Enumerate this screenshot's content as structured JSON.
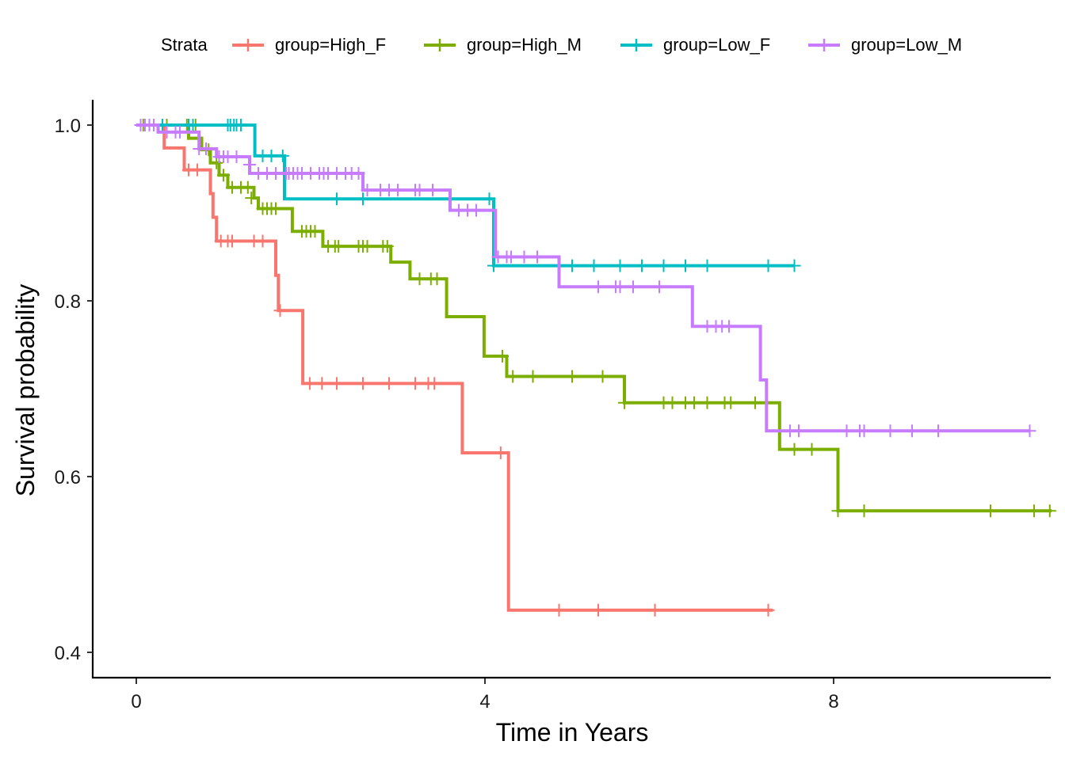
{
  "chart_data": {
    "type": "line",
    "subtype": "kaplan-meier",
    "xlabel": "Time in Years",
    "ylabel": "Survival probability",
    "xlim": [
      -0.5,
      10.5
    ],
    "ylim": [
      0.37,
      1.03
    ],
    "xticks": [
      0,
      4,
      8
    ],
    "yticks": [
      0.4,
      0.6,
      0.8,
      1.0
    ],
    "ytick_labels": [
      "0.4",
      "0.6",
      "0.8",
      "1.0"
    ],
    "grid": false,
    "legend": {
      "title": "Strata",
      "position": "top"
    },
    "series": [
      {
        "name": "group=High_F",
        "color": "#F8766D",
        "steps": [
          [
            0,
            1.0
          ],
          [
            0.32,
            0.974
          ],
          [
            0.55,
            0.949
          ],
          [
            0.85,
            0.922
          ],
          [
            0.88,
            0.895
          ],
          [
            0.92,
            0.868
          ],
          [
            1.6,
            0.829
          ],
          [
            1.63,
            0.789
          ],
          [
            1.91,
            0.706
          ],
          [
            3.74,
            0.627
          ],
          [
            4.27,
            0.448
          ],
          [
            7.3,
            0.448
          ]
        ],
        "censors": [
          [
            0.6,
            0.949
          ],
          [
            0.7,
            0.949
          ],
          [
            0.97,
            0.868
          ],
          [
            1.05,
            0.868
          ],
          [
            1.1,
            0.868
          ],
          [
            1.35,
            0.868
          ],
          [
            1.45,
            0.868
          ],
          [
            1.65,
            0.789
          ],
          [
            1.99,
            0.706
          ],
          [
            2.13,
            0.706
          ],
          [
            2.3,
            0.706
          ],
          [
            2.6,
            0.706
          ],
          [
            2.9,
            0.706
          ],
          [
            3.2,
            0.706
          ],
          [
            3.35,
            0.706
          ],
          [
            3.42,
            0.706
          ],
          [
            4.18,
            0.627
          ],
          [
            4.85,
            0.448
          ],
          [
            5.3,
            0.448
          ],
          [
            5.95,
            0.448
          ],
          [
            7.25,
            0.448
          ]
        ]
      },
      {
        "name": "group=High_M",
        "color": "#7CAE00",
        "steps": [
          [
            0,
            1.0
          ],
          [
            0.6,
            0.985
          ],
          [
            0.75,
            0.972
          ],
          [
            0.85,
            0.957
          ],
          [
            0.95,
            0.943
          ],
          [
            1.05,
            0.929
          ],
          [
            1.35,
            0.917
          ],
          [
            1.4,
            0.905
          ],
          [
            1.79,
            0.879
          ],
          [
            2.14,
            0.862
          ],
          [
            2.92,
            0.844
          ],
          [
            3.14,
            0.825
          ],
          [
            3.56,
            0.782
          ],
          [
            3.99,
            0.737
          ],
          [
            4.25,
            0.714
          ],
          [
            5.6,
            0.684
          ],
          [
            7.38,
            0.631
          ],
          [
            8.05,
            0.561
          ],
          [
            10.5,
            0.561
          ]
        ],
        "censors": [
          [
            0.08,
            1.0
          ],
          [
            0.2,
            1.0
          ],
          [
            0.35,
            1.0
          ],
          [
            0.58,
            1.0
          ],
          [
            0.68,
            1.0
          ],
          [
            0.83,
            0.972
          ],
          [
            0.92,
            0.957
          ],
          [
            1.0,
            0.943
          ],
          [
            1.1,
            0.929
          ],
          [
            1.2,
            0.929
          ],
          [
            1.28,
            0.929
          ],
          [
            1.32,
            0.917
          ],
          [
            1.45,
            0.905
          ],
          [
            1.5,
            0.905
          ],
          [
            1.55,
            0.905
          ],
          [
            1.6,
            0.905
          ],
          [
            1.9,
            0.879
          ],
          [
            1.95,
            0.879
          ],
          [
            2.0,
            0.879
          ],
          [
            2.05,
            0.879
          ],
          [
            2.2,
            0.862
          ],
          [
            2.28,
            0.862
          ],
          [
            2.32,
            0.862
          ],
          [
            2.55,
            0.862
          ],
          [
            2.6,
            0.862
          ],
          [
            2.65,
            0.862
          ],
          [
            2.83,
            0.862
          ],
          [
            2.88,
            0.862
          ],
          [
            3.25,
            0.825
          ],
          [
            3.38,
            0.825
          ],
          [
            3.45,
            0.825
          ],
          [
            4.2,
            0.737
          ],
          [
            4.32,
            0.714
          ],
          [
            4.55,
            0.714
          ],
          [
            5.0,
            0.714
          ],
          [
            5.35,
            0.714
          ],
          [
            5.6,
            0.684
          ],
          [
            6.05,
            0.684
          ],
          [
            6.15,
            0.684
          ],
          [
            6.3,
            0.684
          ],
          [
            6.4,
            0.684
          ],
          [
            6.55,
            0.684
          ],
          [
            6.75,
            0.684
          ],
          [
            6.82,
            0.684
          ],
          [
            7.1,
            0.684
          ],
          [
            7.55,
            0.631
          ],
          [
            7.75,
            0.631
          ],
          [
            8.05,
            0.561
          ],
          [
            8.35,
            0.561
          ],
          [
            9.8,
            0.561
          ],
          [
            10.3,
            0.561
          ],
          [
            10.48,
            0.561
          ]
        ]
      },
      {
        "name": "group=Low_F",
        "color": "#00BFC4",
        "steps": [
          [
            0,
            1.0
          ],
          [
            1.36,
            0.965
          ],
          [
            1.7,
            0.916
          ],
          [
            4.1,
            0.84
          ],
          [
            7.55,
            0.84
          ]
        ],
        "censors": [
          [
            0.05,
            1.0
          ],
          [
            0.15,
            1.0
          ],
          [
            0.3,
            1.0
          ],
          [
            0.6,
            1.0
          ],
          [
            0.65,
            1.0
          ],
          [
            1.05,
            1.0
          ],
          [
            1.08,
            1.0
          ],
          [
            1.12,
            1.0
          ],
          [
            1.15,
            1.0
          ],
          [
            1.2,
            1.0
          ],
          [
            1.45,
            0.965
          ],
          [
            1.55,
            0.965
          ],
          [
            1.68,
            0.965
          ],
          [
            2.3,
            0.916
          ],
          [
            2.6,
            0.916
          ],
          [
            4.05,
            0.916
          ],
          [
            4.1,
            0.84
          ],
          [
            5.0,
            0.84
          ],
          [
            5.25,
            0.84
          ],
          [
            5.55,
            0.84
          ],
          [
            5.8,
            0.84
          ],
          [
            6.05,
            0.84
          ],
          [
            6.3,
            0.84
          ],
          [
            6.55,
            0.84
          ],
          [
            7.25,
            0.84
          ],
          [
            7.55,
            0.84
          ]
        ]
      },
      {
        "name": "group=Low_M",
        "color": "#C77CFF",
        "steps": [
          [
            0,
            1.0
          ],
          [
            0.25,
            0.992
          ],
          [
            0.72,
            0.973
          ],
          [
            0.92,
            0.964
          ],
          [
            1.3,
            0.945
          ],
          [
            2.6,
            0.926
          ],
          [
            3.6,
            0.903
          ],
          [
            4.12,
            0.85
          ],
          [
            4.85,
            0.816
          ],
          [
            6.38,
            0.771
          ],
          [
            7.16,
            0.71
          ],
          [
            7.23,
            0.652
          ],
          [
            10.25,
            0.652
          ]
        ],
        "censors": [
          [
            0.05,
            1.0
          ],
          [
            0.1,
            1.0
          ],
          [
            0.15,
            1.0
          ],
          [
            0.2,
            1.0
          ],
          [
            0.35,
            0.992
          ],
          [
            0.45,
            0.992
          ],
          [
            0.5,
            0.992
          ],
          [
            0.72,
            0.973
          ],
          [
            0.8,
            0.973
          ],
          [
            0.95,
            0.964
          ],
          [
            1.0,
            0.964
          ],
          [
            1.05,
            0.964
          ],
          [
            1.15,
            0.964
          ],
          [
            1.3,
            0.955
          ],
          [
            1.4,
            0.945
          ],
          [
            1.5,
            0.945
          ],
          [
            1.6,
            0.945
          ],
          [
            1.72,
            0.945
          ],
          [
            1.75,
            0.945
          ],
          [
            1.8,
            0.945
          ],
          [
            1.85,
            0.945
          ],
          [
            1.9,
            0.945
          ],
          [
            2.0,
            0.945
          ],
          [
            2.1,
            0.945
          ],
          [
            2.15,
            0.945
          ],
          [
            2.2,
            0.945
          ],
          [
            2.3,
            0.945
          ],
          [
            2.4,
            0.945
          ],
          [
            2.47,
            0.945
          ],
          [
            2.55,
            0.945
          ],
          [
            2.65,
            0.926
          ],
          [
            2.8,
            0.926
          ],
          [
            2.9,
            0.926
          ],
          [
            3.0,
            0.926
          ],
          [
            3.2,
            0.926
          ],
          [
            3.25,
            0.926
          ],
          [
            3.4,
            0.926
          ],
          [
            3.7,
            0.903
          ],
          [
            3.8,
            0.903
          ],
          [
            3.9,
            0.903
          ],
          [
            4.15,
            0.85
          ],
          [
            4.25,
            0.85
          ],
          [
            4.3,
            0.85
          ],
          [
            4.45,
            0.85
          ],
          [
            4.6,
            0.85
          ],
          [
            5.3,
            0.816
          ],
          [
            5.5,
            0.816
          ],
          [
            5.55,
            0.816
          ],
          [
            5.7,
            0.816
          ],
          [
            6.0,
            0.816
          ],
          [
            6.55,
            0.771
          ],
          [
            6.65,
            0.771
          ],
          [
            6.72,
            0.771
          ],
          [
            6.8,
            0.771
          ],
          [
            7.5,
            0.652
          ],
          [
            7.6,
            0.652
          ],
          [
            8.15,
            0.652
          ],
          [
            8.3,
            0.652
          ],
          [
            8.35,
            0.652
          ],
          [
            8.65,
            0.652
          ],
          [
            8.9,
            0.652
          ],
          [
            9.2,
            0.652
          ],
          [
            10.25,
            0.652
          ]
        ]
      }
    ]
  }
}
